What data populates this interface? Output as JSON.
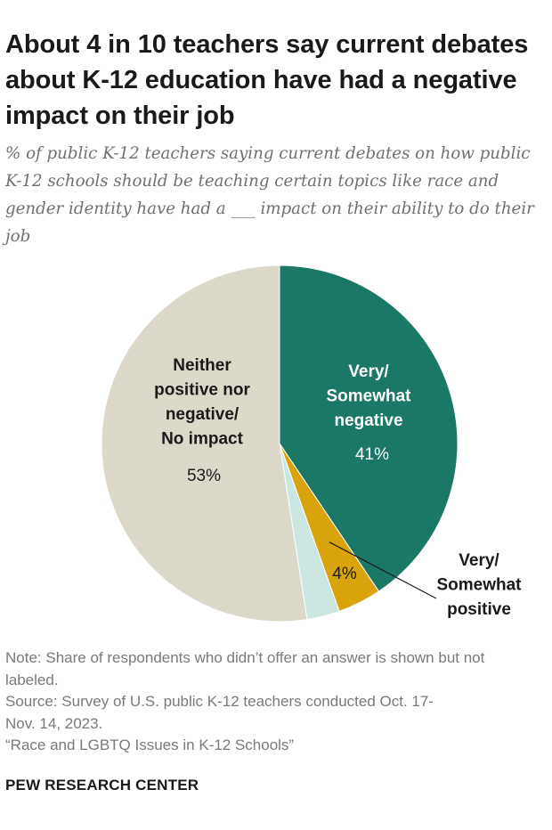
{
  "title": "About 4 in 10 teachers say current debates about K-12 education have had a negative impact on their job",
  "subtitle": "% of public K-12 teachers saying current debates on how public K-12 schools should be teaching certain topics like race and gender identity have had a ___ impact on their ability to do their job",
  "chart_data": {
    "type": "pie",
    "slices": [
      {
        "name": "Very/ Somewhat negative",
        "value": 41,
        "label": "41%",
        "color": "#1b7866",
        "label_lines": [
          "Very/",
          "Somewhat",
          "negative"
        ]
      },
      {
        "name": "Very/ Somewhat positive",
        "value": 4,
        "label": "4%",
        "color": "#d8a30b",
        "label_lines": [
          "Very/",
          "Somewhat",
          "positive"
        ]
      },
      {
        "name": "No answer",
        "value": 3,
        "label": "",
        "color": "#cce7e1",
        "label_lines": []
      },
      {
        "name": "Neither positive nor negative/ No impact",
        "value": 53,
        "label": "53%",
        "color": "#dcd8ca",
        "label_lines": [
          "Neither",
          "positive nor",
          "negative/",
          "No impact"
        ]
      }
    ]
  },
  "notes": {
    "note": "Note: Share of respondents who didn’t offer an answer is shown but not labeled.",
    "source": "Source: Survey of U.S. public K-12 teachers conducted Oct. 17-\nNov. 14, 2023.",
    "report": "“Race and LGBTQ Issues in K-12 Schools”"
  },
  "brand": "PEW RESEARCH CENTER"
}
